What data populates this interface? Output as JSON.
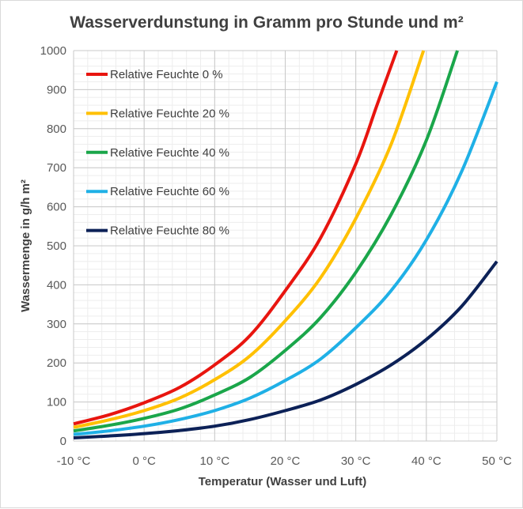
{
  "chart_data": {
    "type": "line",
    "title": "Wasserverdunstung in Gramm pro Stunde und m²",
    "xlabel": "Temperatur (Wasser und Luft)",
    "ylabel": "Wassermenge in g/h m²",
    "xlim": [
      -10,
      50
    ],
    "ylim": [
      0,
      1000
    ],
    "x_ticks": [
      -10,
      0,
      10,
      20,
      30,
      40,
      50
    ],
    "x_tick_labels": [
      "-10 °C",
      "0 °C",
      "10 °C",
      "20 °C",
      "30 °C",
      "40 °C",
      "50 °C"
    ],
    "y_ticks": [
      0,
      100,
      200,
      300,
      400,
      500,
      600,
      700,
      800,
      900,
      1000
    ],
    "y_tick_labels": [
      "0",
      "100",
      "200",
      "300",
      "400",
      "500",
      "600",
      "700",
      "800",
      "900",
      "1000"
    ],
    "x_minor_step": 2,
    "y_minor_step": 20,
    "grid": true,
    "legend_position": "top-left",
    "series": [
      {
        "name": "Relative Feuchte 0 %",
        "color": "#e8150f",
        "points": [
          [
            -10,
            44
          ],
          [
            -5,
            67
          ],
          [
            0,
            98
          ],
          [
            5,
            137
          ],
          [
            10,
            195
          ],
          [
            15,
            270
          ],
          [
            20,
            385
          ],
          [
            25,
            520
          ],
          [
            30,
            710
          ],
          [
            33,
            860
          ],
          [
            35.8,
            1000
          ]
        ]
      },
      {
        "name": "Relative Feuchte 20 %",
        "color": "#ffc000",
        "points": [
          [
            -10,
            35
          ],
          [
            -5,
            54
          ],
          [
            0,
            78
          ],
          [
            5,
            110
          ],
          [
            10,
            157
          ],
          [
            15,
            218
          ],
          [
            20,
            308
          ],
          [
            25,
            418
          ],
          [
            30,
            570
          ],
          [
            35,
            760
          ],
          [
            39.6,
            1000
          ]
        ]
      },
      {
        "name": "Relative Feuchte 40 %",
        "color": "#1aa64a",
        "points": [
          [
            -10,
            26
          ],
          [
            -5,
            40
          ],
          [
            0,
            58
          ],
          [
            5,
            82
          ],
          [
            10,
            118
          ],
          [
            15,
            163
          ],
          [
            20,
            232
          ],
          [
            25,
            316
          ],
          [
            30,
            432
          ],
          [
            35,
            580
          ],
          [
            40,
            770
          ],
          [
            44.4,
            1000
          ]
        ]
      },
      {
        "name": "Relative Feuchte 60 %",
        "color": "#1fb0e6",
        "points": [
          [
            -10,
            17
          ],
          [
            -5,
            26
          ],
          [
            0,
            38
          ],
          [
            5,
            55
          ],
          [
            10,
            78
          ],
          [
            15,
            110
          ],
          [
            20,
            155
          ],
          [
            25,
            210
          ],
          [
            30,
            290
          ],
          [
            35,
            385
          ],
          [
            40,
            515
          ],
          [
            45,
            690
          ],
          [
            50,
            920
          ]
        ]
      },
      {
        "name": "Relative Feuchte 80 %",
        "color": "#0c2157",
        "points": [
          [
            -10,
            8
          ],
          [
            -5,
            13
          ],
          [
            0,
            19
          ],
          [
            5,
            27
          ],
          [
            10,
            38
          ],
          [
            15,
            55
          ],
          [
            20,
            78
          ],
          [
            25,
            105
          ],
          [
            30,
            145
          ],
          [
            35,
            195
          ],
          [
            40,
            260
          ],
          [
            45,
            345
          ],
          [
            50,
            460
          ]
        ]
      }
    ]
  }
}
